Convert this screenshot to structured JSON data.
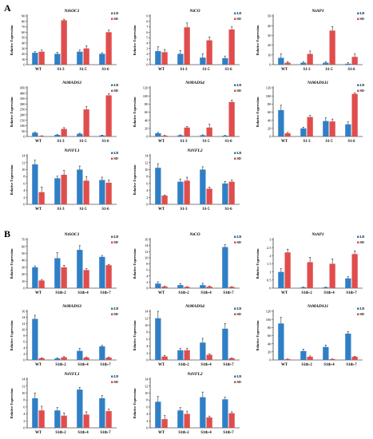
{
  "sections": [
    {
      "letter": "A",
      "categories": [
        "WT",
        "S1-3",
        "S1-5",
        "S1-6"
      ],
      "charts": [
        {
          "title": "NtSOC1",
          "ylabel": "Relative Expression",
          "yticks": [
            0,
            10,
            20,
            30,
            40,
            50,
            60,
            70,
            80,
            90
          ],
          "ymax": 90,
          "series": [
            {
              "name": "LD",
              "values": [
                22,
                20,
                24,
                20
              ],
              "err": [
                2,
                3,
                3,
                2
              ]
            },
            {
              "name": "SD",
              "values": [
                24,
                82,
                30,
                60
              ],
              "err": [
                3,
                2,
                5,
                4
              ]
            }
          ]
        },
        {
          "title": "NtCO",
          "ylabel": "Relative Expression",
          "yticks": [
            0,
            1,
            2,
            3,
            4,
            5,
            6,
            7,
            8,
            9
          ],
          "ymax": 9,
          "series": [
            {
              "name": "LD",
              "values": [
                2.5,
                2.0,
                1.3,
                1.2
              ],
              "err": [
                0.8,
                0.6,
                0.7,
                0.4
              ]
            },
            {
              "name": "SD",
              "values": [
                2.3,
                6.9,
                4.5,
                6.5
              ],
              "err": [
                0.5,
                0.8,
                0.6,
                0.5
              ]
            }
          ]
        },
        {
          "title": "NtAP1",
          "ylabel": "Relative Expression",
          "yticks": [
            0,
            10,
            20,
            30,
            40,
            50
          ],
          "ymax": 50,
          "series": [
            {
              "name": "LD",
              "values": [
                7,
                2,
                2,
                1
              ],
              "err": [
                4,
                1,
                1,
                1
              ]
            },
            {
              "name": "SD",
              "values": [
                2,
                11,
                35,
                8
              ],
              "err": [
                1,
                3,
                4,
                3
              ]
            }
          ]
        },
        {
          "title": "NtMADS3",
          "ylabel": "Relative Expression",
          "yticks": [
            0,
            50,
            100,
            150,
            200,
            250,
            300,
            350,
            400,
            450
          ],
          "ymax": 450,
          "series": [
            {
              "name": "LD",
              "values": [
                35,
                15,
                25,
                10
              ],
              "err": [
                5,
                3,
                5,
                3
              ]
            },
            {
              "name": "SD",
              "values": [
                5,
                70,
                250,
                380
              ],
              "err": [
                2,
                12,
                25,
                15
              ]
            }
          ]
        },
        {
          "title": "NtMADS4",
          "ylabel": "Relative Expression",
          "yticks": [
            0,
            20,
            40,
            60,
            80,
            100,
            120
          ],
          "ymax": 120,
          "series": [
            {
              "name": "LD",
              "values": [
                8,
                3,
                3,
                2
              ],
              "err": [
                2,
                1,
                1,
                1
              ]
            },
            {
              "name": "SD",
              "values": [
                2,
                22,
                22,
                85
              ],
              "err": [
                1,
                3,
                8,
                5
              ]
            }
          ]
        },
        {
          "title": "NtMADS11",
          "ylabel": "Relative Expression",
          "yticks": [
            0,
            20,
            40,
            60,
            80,
            100,
            120
          ],
          "ymax": 120,
          "series": [
            {
              "name": "LD",
              "values": [
                65,
                20,
                38,
                30
              ],
              "err": [
                12,
                3,
                8,
                6
              ]
            },
            {
              "name": "SD",
              "values": [
                8,
                48,
                37,
                105
              ],
              "err": [
                2,
                4,
                6,
                3
              ]
            }
          ]
        }
      ]
    },
    {
      "letter": "",
      "categories": [
        "WT",
        "S1-3",
        "S1-5",
        "S1-6"
      ],
      "charts": [
        {
          "title": "NtNFL1",
          "ylabel": "Relative Expression",
          "yticks": [
            0,
            2,
            4,
            6,
            8,
            10,
            12,
            14
          ],
          "ymax": 14,
          "series": [
            {
              "name": "LD",
              "values": [
                11.5,
                7.5,
                10.0,
                7.0
              ],
              "err": [
                1.2,
                0.6,
                1.0,
                0.8
              ]
            },
            {
              "name": "SD",
              "values": [
                3.5,
                8.5,
                6.8,
                6.2
              ],
              "err": [
                1.5,
                1.2,
                1.2,
                0.8
              ]
            }
          ]
        },
        {
          "title": "NtNFL2",
          "ylabel": "Relative Expression",
          "yticks": [
            0,
            2,
            4,
            6,
            8,
            10,
            12,
            14
          ],
          "ymax": 14,
          "series": [
            {
              "name": "LD",
              "values": [
                10.5,
                6.5,
                10.0,
                6.0
              ],
              "err": [
                1.2,
                0.8,
                0.8,
                0.6
              ]
            },
            {
              "name": "SD",
              "values": [
                2.5,
                6.8,
                4.5,
                6.5
              ],
              "err": [
                0.2,
                1.0,
                0.5,
                0.5
              ]
            }
          ]
        }
      ]
    },
    {
      "letter": "B",
      "categories": [
        "WT",
        "S1tb-2",
        "S1tb-4",
        "S1tb-7"
      ],
      "charts": [
        {
          "title": "NtSOC1",
          "ylabel": "Relative Expression",
          "yticks": [
            0,
            10,
            20,
            30,
            40,
            50,
            60,
            70
          ],
          "ymax": 70,
          "series": [
            {
              "name": "LD",
              "values": [
                30,
                43,
                55,
                45
              ],
              "err": [
                2,
                8,
                6,
                2
              ]
            },
            {
              "name": "SD",
              "values": [
                11,
                30,
                26,
                33
              ],
              "err": [
                1,
                3,
                2,
                1
              ]
            }
          ]
        },
        {
          "title": "NtCO",
          "ylabel": "Relative Expression",
          "yticks": [
            0,
            2,
            4,
            6,
            8,
            10,
            12,
            14,
            16
          ],
          "ymax": 16,
          "series": [
            {
              "name": "LD",
              "values": [
                1.5,
                1.0,
                1.0,
                13.5
              ],
              "err": [
                0.6,
                0.5,
                0.6,
                0.8
              ]
            },
            {
              "name": "SD",
              "values": [
                0.5,
                0.4,
                0.5,
                0.4
              ],
              "err": [
                0.2,
                0.1,
                0.2,
                0.1
              ]
            }
          ]
        },
        {
          "title": "NtAP1",
          "ylabel": "Relative Expression",
          "yticks": [
            0,
            0.5,
            1,
            1.5,
            2,
            2.5,
            3
          ],
          "ymax": 3,
          "series": [
            {
              "name": "LD",
              "values": [
                1.0,
                0.05,
                0.05,
                0.6
              ],
              "err": [
                0.2,
                0.02,
                0.02,
                0.1
              ]
            },
            {
              "name": "SD",
              "values": [
                2.2,
                1.6,
                1.5,
                2.1
              ],
              "err": [
                0.2,
                0.3,
                0.3,
                0.2
              ]
            }
          ]
        },
        {
          "title": "NtMADS3",
          "ylabel": "Relative Expression",
          "yticks": [
            0,
            2,
            4,
            6,
            8,
            10,
            12,
            14,
            16
          ],
          "ymax": 16,
          "series": [
            {
              "name": "LD",
              "values": [
                13.5,
                0.5,
                3.0,
                4.5
              ],
              "err": [
                1.2,
                0.2,
                0.8,
                0.3
              ]
            },
            {
              "name": "SD",
              "values": [
                0.6,
                0.9,
                0.8,
                0.8
              ],
              "err": [
                0.1,
                0.2,
                0.2,
                0.2
              ]
            }
          ]
        },
        {
          "title": "NtMADS4",
          "ylabel": "Relative Expression",
          "yticks": [
            0,
            2,
            4,
            6,
            8,
            10,
            12,
            14
          ],
          "ymax": 14,
          "series": [
            {
              "name": "LD",
              "values": [
                12.0,
                2.8,
                5.0,
                9.0
              ],
              "err": [
                2.0,
                0.5,
                1.2,
                1.5
              ]
            },
            {
              "name": "SD",
              "values": [
                1.0,
                2.8,
                1.5,
                0.5
              ],
              "err": [
                0.3,
                0.5,
                0.3,
                0.1
              ]
            }
          ]
        },
        {
          "title": "NtMADS11",
          "ylabel": "Relative Expression",
          "yticks": [
            0,
            20,
            40,
            60,
            80,
            100,
            120
          ],
          "ymax": 120,
          "series": [
            {
              "name": "LD",
              "values": [
                90,
                22,
                32,
                65
              ],
              "err": [
                15,
                5,
                5,
                5
              ]
            },
            {
              "name": "SD",
              "values": [
                2,
                8,
                2,
                8
              ],
              "err": [
                0.5,
                2,
                0.5,
                1
              ]
            }
          ]
        }
      ]
    },
    {
      "letter": "",
      "categories": [
        "WT",
        "S1tb-2",
        "S1tb-4",
        "S1tb-7"
      ],
      "charts": [
        {
          "title": "NtNFL1",
          "ylabel": "Relative Expression",
          "yticks": [
            0,
            2,
            4,
            6,
            8,
            10,
            12,
            14
          ],
          "ymax": 14,
          "series": [
            {
              "name": "LD",
              "values": [
                8.5,
                5.0,
                11.0,
                8.5
              ],
              "err": [
                1.5,
                0.8,
                0.6,
                0.8
              ]
            },
            {
              "name": "SD",
              "values": [
                5.0,
                3.5,
                3.8,
                4.8
              ],
              "err": [
                1.2,
                0.8,
                0.8,
                0.6
              ]
            }
          ]
        },
        {
          "title": "NtNFL2",
          "ylabel": "Relative Expression",
          "yticks": [
            0,
            2,
            4,
            6,
            8,
            10,
            12,
            14
          ],
          "ymax": 14,
          "series": [
            {
              "name": "LD",
              "values": [
                7.5,
                5.0,
                8.8,
                8.2
              ],
              "err": [
                1.5,
                0.8,
                1.5,
                0.6
              ]
            },
            {
              "name": "SD",
              "values": [
                2.5,
                4.0,
                3.0,
                4.2
              ],
              "err": [
                1.0,
                0.8,
                0.4,
                0.4
              ]
            }
          ]
        }
      ]
    }
  ],
  "colors": {
    "LD": "#2f7fc6",
    "SD": "#e04d4d",
    "axis": "#000000"
  },
  "chart_data": {
    "type": "bar",
    "note_sections": "grouped bar charts, two series LD and SD with error bars",
    "series_names": [
      "LD",
      "SD"
    ]
  }
}
